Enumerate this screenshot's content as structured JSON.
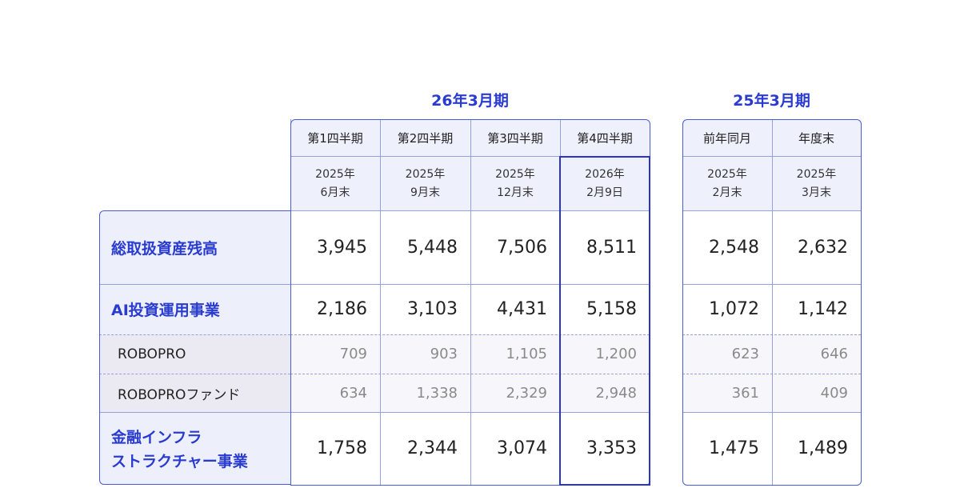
{
  "groups": [
    {
      "title": "26年3月期",
      "columns": [
        {
          "period": "第1四半期",
          "date": [
            "2025年",
            "6月末"
          ]
        },
        {
          "period": "第2四半期",
          "date": [
            "2025年",
            "9月末"
          ]
        },
        {
          "period": "第3四半期",
          "date": [
            "2025年",
            "12月末"
          ]
        },
        {
          "period": "第4四半期",
          "date": [
            "2026年",
            "2月9日"
          ]
        }
      ]
    },
    {
      "title": "25年3月期",
      "columns": [
        {
          "period": "前年同月",
          "date": [
            "2025年",
            "2月末"
          ]
        },
        {
          "period": "年度末",
          "date": [
            "2025年",
            "3月末"
          ]
        }
      ]
    }
  ],
  "rows": [
    {
      "label": [
        "総取扱資産残高"
      ],
      "values": [
        "3,945",
        "5,448",
        "7,506",
        "8,511",
        "2,548",
        "2,632"
      ]
    },
    {
      "label": [
        "AI投資運用事業"
      ],
      "values": [
        "2,186",
        "3,103",
        "4,431",
        "5,158",
        "1,072",
        "1,142"
      ]
    },
    {
      "label": [
        "ROBOPRO"
      ],
      "values": [
        "709",
        "903",
        "1,105",
        "1,200",
        "623",
        "646"
      ]
    },
    {
      "label": [
        "ROBOPROファンド"
      ],
      "values": [
        "634",
        "1,338",
        "2,329",
        "2,948",
        "361",
        "409"
      ]
    },
    {
      "label": [
        "金融インフラ",
        "ストラクチャー事業"
      ],
      "values": [
        "1,758",
        "2,344",
        "3,074",
        "3,353",
        "1,475",
        "1,489"
      ]
    }
  ]
}
